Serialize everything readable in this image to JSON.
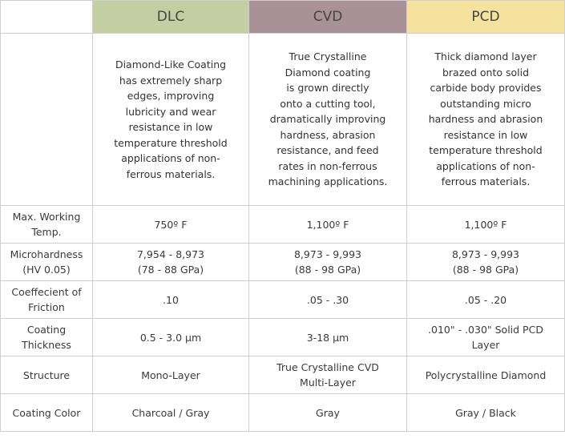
{
  "columns": [
    {
      "label": "DLC",
      "color": "#c3cfa3"
    },
    {
      "label": "CVD",
      "color": "#a99297"
    },
    {
      "label": "PCD",
      "color": "#f6e29f"
    }
  ],
  "descriptions": [
    "Diamond-Like Coating\nhas extremely sharp\nedges, improving\nlubricity and wear\nresistance in low\ntemperature threshold\napplications of non-\nferrous materials.",
    "True Crystalline\nDiamond coating\nis grown directly\nonto a cutting tool,\ndramatically improving\nhardness, abrasion\nresistance, and feed\nrates in non-ferrous\nmachining applications.",
    "Thick diamond layer\nbrazed onto solid\ncarbide body provides\noutstanding micro\nhardness and abrasion\nresistance in low\ntemperature threshold\napplications of non-\nferrous materials."
  ],
  "rows": [
    {
      "label": "Max. Working\nTemp.",
      "values": [
        "750º F",
        "1,100º F",
        "1,100º F"
      ]
    },
    {
      "label": "Microhardness\n(HV 0.05)",
      "values": [
        "7,954 - 8,973\n(78 - 88 GPa)",
        "8,973 - 9,993\n(88 - 98 GPa)",
        "8,973 - 9,993\n(88 - 98 GPa)"
      ]
    },
    {
      "label": "Coeffecient of\nFriction",
      "values": [
        ".10",
        ".05 - .30",
        ".05 - .20"
      ]
    },
    {
      "label": "Coating\nThickness",
      "values": [
        "0.5 - 3.0 µm",
        "3-18 µm",
        ".010\" - .030\" Solid PCD\nLayer"
      ]
    },
    {
      "label": "Structure",
      "values": [
        "Mono-Layer",
        "True Crystalline CVD\nMulti-Layer",
        "Polycrystalline Diamond"
      ]
    },
    {
      "label": "Coating Color",
      "values": [
        "Charcoal / Gray",
        "Gray",
        "Gray / Black"
      ]
    }
  ]
}
